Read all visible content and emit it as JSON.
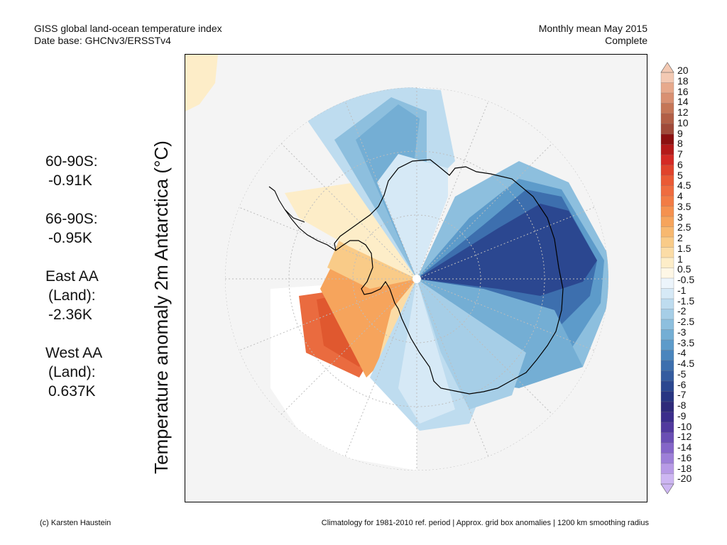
{
  "header": {
    "title_line1": "GISS global land-ocean temperature index",
    "title_line2": "Date base: GHCNv3/ERSSTv4",
    "period_line1": "Monthly mean May 2015",
    "period_line2": "Complete"
  },
  "axis_label": "Temperature anomaly 2m Antarctica (°C)",
  "stats": [
    {
      "label": "60-90S:",
      "value": "-0.91K"
    },
    {
      "label": "66-90S:",
      "value": "-0.95K"
    },
    {
      "label": "East AA",
      "label2": "(Land):",
      "value": "-2.36K"
    },
    {
      "label": "West AA",
      "label2": "(Land):",
      "value": "0.637K"
    }
  ],
  "colorbar": {
    "labels": [
      "20",
      "18",
      "16",
      "14",
      "12",
      "10",
      "9",
      "8",
      "7",
      "6",
      "5",
      "4.5",
      "4",
      "3.5",
      "3",
      "2.5",
      "2",
      "1.5",
      "1",
      "0.5",
      "-0.5",
      "-1",
      "-1.5",
      "-2",
      "-2.5",
      "-3",
      "-3.5",
      "-4",
      "-4.5",
      "-5",
      "-6",
      "-7",
      "-8",
      "-9",
      "-10",
      "-12",
      "-14",
      "-16",
      "-18",
      "-20"
    ],
    "colors": [
      "#f3c9b3",
      "#e7a98c",
      "#d99072",
      "#c57657",
      "#b25f46",
      "#a04a39",
      "#8c1111",
      "#b41a1a",
      "#d42a25",
      "#e0432c",
      "#ea5a35",
      "#ef6c3f",
      "#f27c45",
      "#f5914f",
      "#f6a45c",
      "#f7b870",
      "#f9cb88",
      "#fbdca6",
      "#fdedc8",
      "#fef7e6",
      "#ecf4fb",
      "#d6e9f6",
      "#bedcef",
      "#a6cee7",
      "#8dbfde",
      "#74aed4",
      "#5d9bca",
      "#4a85bd",
      "#3d6fae",
      "#345b9f",
      "#2b4790",
      "#283582",
      "#2e2a7a",
      "#3b2d8b",
      "#51399e",
      "#6a4eb4",
      "#8465c8",
      "#9d7fd8",
      "#b79ae6",
      "#cdb6f2"
    ]
  },
  "footer": {
    "left": "(c) Karsten Haustein",
    "right": "Climatology for 1981-2010 ref. period | Approx. grid box anomalies | 1200 km smoothing radius"
  }
}
